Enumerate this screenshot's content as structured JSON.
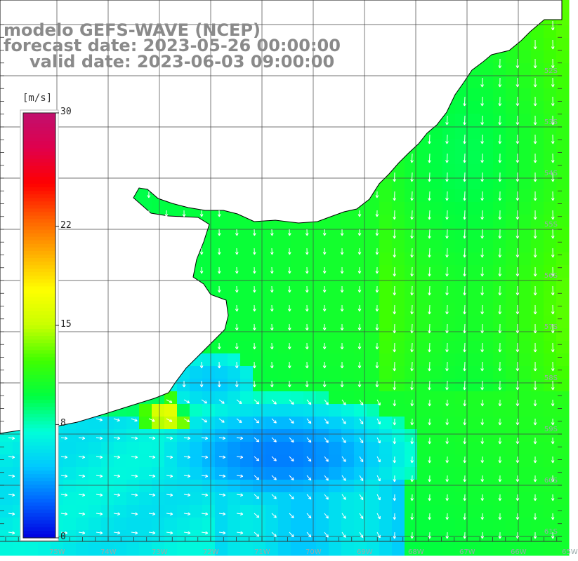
{
  "header": {
    "line1": "modelo GEFS-WAVE (NCEP)",
    "line2": "forecast date: 2023-05-26 00:00:00",
    "line3": "valid date: 2023-06-03 09:00:00"
  },
  "colorbar": {
    "unit": "[m/s]",
    "min": 0,
    "max": 30,
    "ticks": [
      {
        "value": 30,
        "label": "30"
      },
      {
        "value": 22,
        "label": "22"
      },
      {
        "value": 15,
        "label": "15"
      },
      {
        "value": 8,
        "label": "8"
      },
      {
        "value": 0,
        "label": "0"
      }
    ],
    "colors": [
      "#0000e0",
      "#0060ff",
      "#00c8ff",
      "#00ffd8",
      "#00ff40",
      "#40ff00",
      "#c8ff00",
      "#ffff00",
      "#ffb000",
      "#ff6000",
      "#ff0000",
      "#e0004c",
      "#c0106e"
    ]
  },
  "map": {
    "field": "wind speed",
    "land_color": "#ffffff",
    "grid_color": "#444444",
    "arrow_color": "#ffffff",
    "lat_labels": [
      "52S",
      "53S",
      "54S",
      "55S",
      "56S",
      "57S",
      "58S",
      "59S",
      "60S",
      "61S"
    ],
    "lon_labels": [
      "75W",
      "74W",
      "73W",
      "72W",
      "71W",
      "70W",
      "69W",
      "68W",
      "67W",
      "66W",
      "65W"
    ]
  }
}
